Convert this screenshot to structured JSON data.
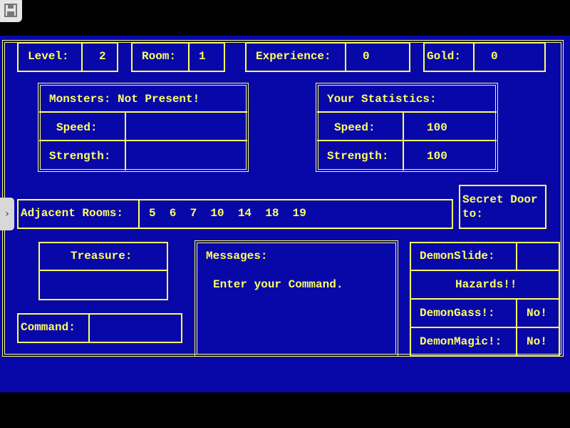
{
  "colors": {
    "background": "#0808a8",
    "text": "#ffff66"
  },
  "toolbar": {
    "save_icon": "floppy-disk-icon",
    "side_tab_icon": "chevron-right-icon"
  },
  "status": {
    "level_label": "Level:",
    "level": "2",
    "room_label": "Room:",
    "room": "1",
    "experience_label": "Experience:",
    "experience": "0",
    "gold_label": "Gold:",
    "gold": "0"
  },
  "monsters": {
    "title": "Monsters: Not Present!",
    "speed_label": "Speed:",
    "speed": "",
    "strength_label": "Strength:",
    "strength": ""
  },
  "player": {
    "title": "Your Statistics:",
    "speed_label": "Speed:",
    "speed": "100",
    "strength_label": "Strength:",
    "strength": "100"
  },
  "adjacent": {
    "label": "Adjacent Rooms:",
    "rooms": "5  6  7  10  14  18  19"
  },
  "secret_door": {
    "label": "Secret Door\nto:"
  },
  "treasure": {
    "label": "Treasure:",
    "value": ""
  },
  "command": {
    "label": "Command:",
    "value": ""
  },
  "messages": {
    "label": "Messages:",
    "text": "Enter your Command."
  },
  "hazards": {
    "demonslide_label": "DemonSlide:",
    "demonslide": "",
    "title": "Hazards!!",
    "demongass_label": "DemonGass!:",
    "demongass": "No!",
    "demonmagic_label": "DemonMagic!:",
    "demonmagic": "No!"
  }
}
